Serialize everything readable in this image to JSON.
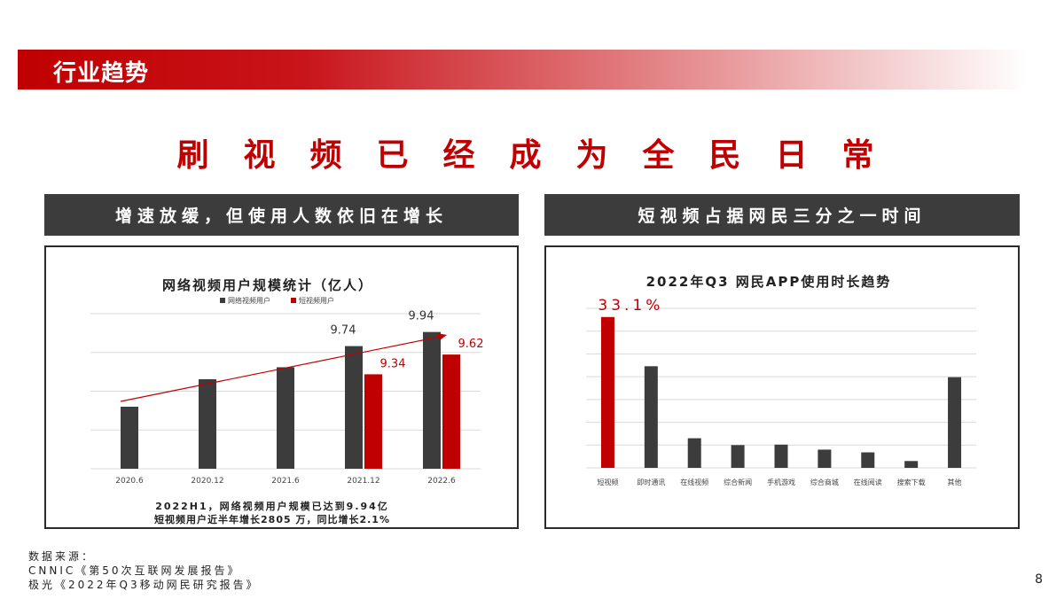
{
  "section_title": "行业趋势",
  "headline": "刷视频已经成为全民日常",
  "left_panel": {
    "header": "增速放缓，但使用人数依旧在增长",
    "note_line1": "2022H1，网络视频用户规模已达到9.94亿",
    "note_line2": "短视频用户近半年增长2805 万，同比增长2.1%"
  },
  "right_panel": {
    "header": "短视频占据网民三分之一时间"
  },
  "source": {
    "label": "数据来源：",
    "line1": "CNNIC《第50次互联网发展报告》",
    "line2": "极光《2022年Q3移动网民研究报告》"
  },
  "page_number": "8",
  "colors": {
    "red": "#c00000",
    "dark": "#3c3c3c"
  },
  "chart_data": [
    {
      "type": "bar",
      "title": "网络视频用户规模统计（亿人）",
      "categories": [
        "2020.6",
        "2020.12",
        "2021.6",
        "2021.12",
        "2022.6"
      ],
      "series": [
        {
          "name": "网络视频用户",
          "color": "#3c3c3c",
          "values": [
            8.88,
            9.27,
            9.44,
            9.74,
            9.94
          ],
          "labels": [
            null,
            null,
            null,
            "9.74",
            "9.94"
          ]
        },
        {
          "name": "短视频用户",
          "color": "#c00000",
          "values": [
            null,
            null,
            null,
            9.34,
            9.62
          ],
          "labels": [
            null,
            null,
            null,
            "9.34",
            "9.62"
          ]
        }
      ],
      "ylim": [
        8.0,
        10.2
      ],
      "grid": true,
      "trend_arrow": true,
      "legend": "top-center"
    },
    {
      "type": "bar",
      "title": "2022年Q3 网民APP使用时长趋势",
      "categories": [
        "短视频",
        "即时通讯",
        "在线视频",
        "综合新闻",
        "手机游戏",
        "综合商城",
        "在线阅读",
        "搜索下载",
        "其他"
      ],
      "values": [
        33.1,
        22.3,
        6.5,
        5.0,
        5.1,
        4.0,
        3.4,
        1.5,
        19.9
      ],
      "highlight_index": 0,
      "highlight_label": "33.1%",
      "ylim": [
        0,
        35
      ],
      "grid": true
    }
  ]
}
